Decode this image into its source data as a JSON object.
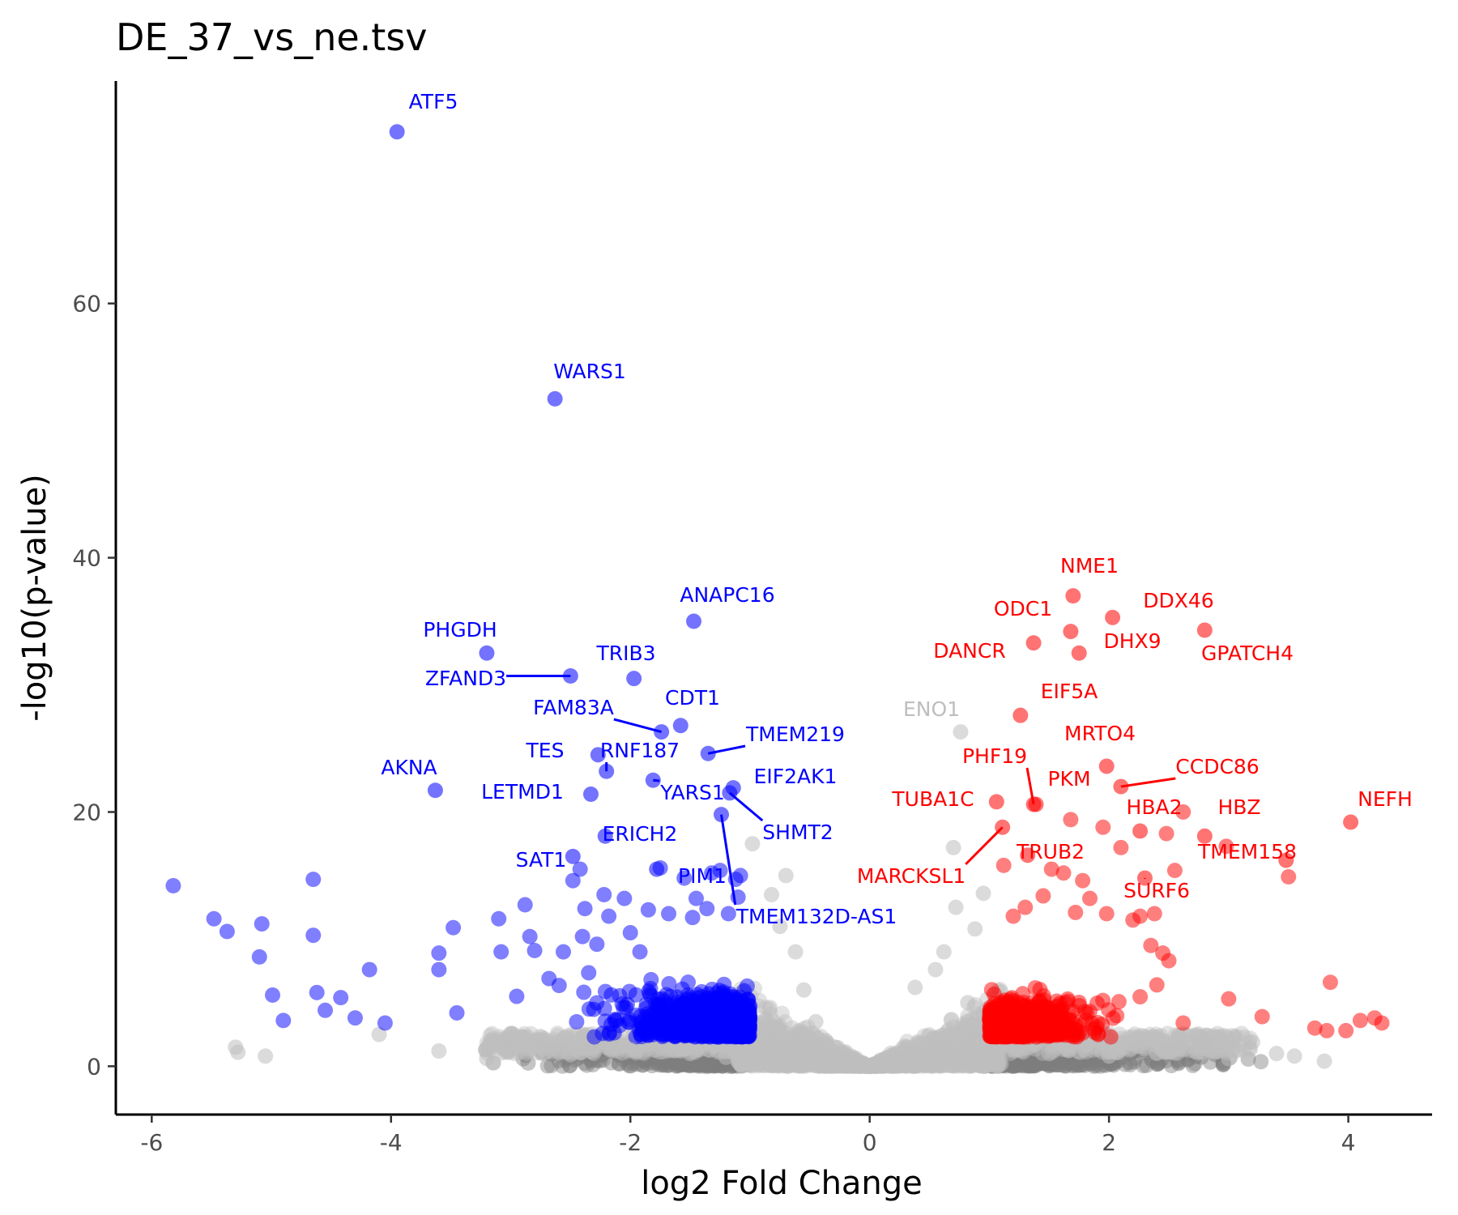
{
  "chart_data": {
    "type": "scatter",
    "title": "DE_37_vs_ne.tsv",
    "xlabel": "log2 Fold Change",
    "ylabel": "-log10(p-value)",
    "xlim": [
      -6.3,
      4.7
    ],
    "ylim": [
      -3.8,
      77.5
    ],
    "x_ticks": [
      -6,
      -4,
      -2,
      0,
      2,
      4
    ],
    "x_tick_labels": [
      "-6",
      "-4",
      "-2",
      "0",
      "2",
      "4"
    ],
    "y_ticks": [
      0,
      20,
      40,
      60
    ],
    "y_tick_labels": [
      "0",
      "20",
      "40",
      "60"
    ],
    "grid": false,
    "legend": "none",
    "colors": {
      "down": "#0000ff",
      "up": "#ff0000",
      "not_significant": "#bebebe",
      "low_significance": "#7f7f7f",
      "axis": "#000000"
    },
    "labeled_genes": [
      {
        "gene": "ATF5",
        "x": -3.95,
        "y": 73.5,
        "group": "down"
      },
      {
        "gene": "WARS1",
        "x": -2.63,
        "y": 52.5,
        "group": "down"
      },
      {
        "gene": "ANAPC16",
        "x": -1.47,
        "y": 35.0,
        "group": "down"
      },
      {
        "gene": "PHGDH",
        "x": -3.2,
        "y": 32.5,
        "group": "down"
      },
      {
        "gene": "TRIB3",
        "x": -1.97,
        "y": 30.5,
        "group": "down"
      },
      {
        "gene": "ZFAND3",
        "x": -2.5,
        "y": 30.7,
        "group": "down"
      },
      {
        "gene": "CDT1",
        "x": -1.58,
        "y": 26.8,
        "group": "down"
      },
      {
        "gene": "FAM83A",
        "x": -1.74,
        "y": 26.3,
        "group": "down"
      },
      {
        "gene": "TMEM219",
        "x": -1.35,
        "y": 24.6,
        "group": "down"
      },
      {
        "gene": "TES",
        "x": -2.27,
        "y": 24.5,
        "group": "down"
      },
      {
        "gene": "RNF187",
        "x": -2.2,
        "y": 23.2,
        "group": "down"
      },
      {
        "gene": "AKNA",
        "x": -3.63,
        "y": 21.7,
        "group": "down"
      },
      {
        "gene": "LETMD1",
        "x": -2.33,
        "y": 21.4,
        "group": "down"
      },
      {
        "gene": "EIF2AK1",
        "x": -1.14,
        "y": 21.9,
        "group": "down"
      },
      {
        "gene": "YARS1",
        "x": -1.81,
        "y": 22.5,
        "group": "down"
      },
      {
        "gene": "SHMT2",
        "x": -1.17,
        "y": 21.5,
        "group": "down"
      },
      {
        "gene": "ERICH2",
        "x": -2.21,
        "y": 18.1,
        "group": "down"
      },
      {
        "gene": "SAT1",
        "x": -2.48,
        "y": 16.5,
        "group": "down"
      },
      {
        "gene": "PIM1",
        "x": -1.78,
        "y": 15.5,
        "group": "down"
      },
      {
        "gene": "TMEM132D-AS1",
        "x": -1.24,
        "y": 19.8,
        "group": "down"
      },
      {
        "gene": "NME1",
        "x": 1.7,
        "y": 37.0,
        "group": "up"
      },
      {
        "gene": "DDX46",
        "x": 2.03,
        "y": 35.3,
        "group": "up"
      },
      {
        "gene": "ODC1",
        "x": 1.68,
        "y": 34.2,
        "group": "up"
      },
      {
        "gene": "GPATCH4",
        "x": 2.8,
        "y": 34.3,
        "group": "up"
      },
      {
        "gene": "DANCR",
        "x": 1.37,
        "y": 33.3,
        "group": "up"
      },
      {
        "gene": "DHX9",
        "x": 1.75,
        "y": 32.5,
        "group": "up"
      },
      {
        "gene": "EIF5A",
        "x": 1.26,
        "y": 27.6,
        "group": "up"
      },
      {
        "gene": "ENO1",
        "x": 0.76,
        "y": 26.3,
        "group": "not_significant"
      },
      {
        "gene": "MRTO4",
        "x": 1.98,
        "y": 23.6,
        "group": "up"
      },
      {
        "gene": "CCDC86",
        "x": 2.1,
        "y": 22.0,
        "group": "up"
      },
      {
        "gene": "PHF19",
        "x": 1.37,
        "y": 20.6,
        "group": "up"
      },
      {
        "gene": "PKM",
        "x": 1.39,
        "y": 20.6,
        "group": "up"
      },
      {
        "gene": "TUBA1C",
        "x": 1.06,
        "y": 20.8,
        "group": "up"
      },
      {
        "gene": "HBA2",
        "x": 2.26,
        "y": 18.5,
        "group": "up"
      },
      {
        "gene": "HBZ",
        "x": 2.8,
        "y": 18.1,
        "group": "up"
      },
      {
        "gene": "NEFH",
        "x": 4.02,
        "y": 19.2,
        "group": "up"
      },
      {
        "gene": "TMEM158",
        "x": 3.48,
        "y": 16.2,
        "group": "up"
      },
      {
        "gene": "TRUB2",
        "x": 1.32,
        "y": 16.6,
        "group": "up"
      },
      {
        "gene": "MARCKSL1",
        "x": 1.11,
        "y": 18.8,
        "group": "up"
      },
      {
        "gene": "SURF6",
        "x": 2.3,
        "y": 14.8,
        "group": "up"
      }
    ],
    "other_points": {
      "down": [
        [
          -5.82,
          14.2
        ],
        [
          -5.48,
          11.6
        ],
        [
          -5.37,
          10.6
        ],
        [
          -5.08,
          11.2
        ],
        [
          -5.1,
          8.6
        ],
        [
          -4.99,
          5.6
        ],
        [
          -4.9,
          3.6
        ],
        [
          -4.65,
          14.7
        ],
        [
          -4.65,
          10.3
        ],
        [
          -4.62,
          5.8
        ],
        [
          -4.55,
          4.4
        ],
        [
          -4.42,
          5.4
        ],
        [
          -4.3,
          3.8
        ],
        [
          -4.18,
          7.6
        ],
        [
          -4.05,
          3.4
        ],
        [
          -3.6,
          8.9
        ],
        [
          -3.6,
          7.6
        ],
        [
          -3.48,
          10.9
        ],
        [
          -3.45,
          4.2
        ],
        [
          -3.1,
          11.6
        ],
        [
          -3.08,
          9.0
        ],
        [
          -2.95,
          5.5
        ],
        [
          -2.88,
          12.7
        ],
        [
          -2.84,
          10.2
        ],
        [
          -2.8,
          9.1
        ],
        [
          -2.68,
          6.9
        ],
        [
          -2.56,
          9.0
        ],
        [
          -2.48,
          14.6
        ],
        [
          -2.42,
          15.5
        ],
        [
          -2.4,
          10.2
        ],
        [
          -2.38,
          12.4
        ],
        [
          -2.28,
          9.6
        ],
        [
          -2.22,
          13.5
        ],
        [
          -2.18,
          11.8
        ],
        [
          -2.05,
          13.2
        ],
        [
          -2.0,
          10.5
        ],
        [
          -1.92,
          9.0
        ],
        [
          -1.85,
          12.3
        ],
        [
          -1.75,
          15.6
        ],
        [
          -1.68,
          12.0
        ],
        [
          -1.55,
          14.8
        ],
        [
          -1.48,
          11.7
        ],
        [
          -1.45,
          13.2
        ],
        [
          -1.36,
          12.4
        ],
        [
          -1.32,
          15.2
        ],
        [
          -1.25,
          15.4
        ],
        [
          -1.18,
          12.0
        ],
        [
          -1.12,
          14.7
        ],
        [
          -1.1,
          13.3
        ],
        [
          -1.08,
          15.0
        ]
      ],
      "up": [
        [
          1.12,
          15.8
        ],
        [
          1.2,
          11.8
        ],
        [
          1.3,
          12.5
        ],
        [
          1.45,
          13.4
        ],
        [
          1.52,
          15.5
        ],
        [
          1.62,
          15.2
        ],
        [
          1.68,
          19.4
        ],
        [
          1.72,
          12.1
        ],
        [
          1.78,
          14.6
        ],
        [
          1.84,
          13.2
        ],
        [
          1.95,
          18.8
        ],
        [
          1.98,
          12.0
        ],
        [
          2.1,
          17.2
        ],
        [
          2.2,
          11.5
        ],
        [
          2.26,
          11.8
        ],
        [
          2.38,
          12.0
        ],
        [
          2.35,
          9.5
        ],
        [
          2.48,
          18.3
        ],
        [
          2.55,
          15.4
        ],
        [
          2.62,
          20.0
        ],
        [
          2.45,
          8.9
        ],
        [
          2.5,
          8.3
        ],
        [
          2.98,
          17.3
        ],
        [
          3.0,
          5.3
        ],
        [
          3.28,
          3.9
        ],
        [
          3.5,
          14.9
        ],
        [
          3.72,
          3.0
        ],
        [
          3.85,
          6.6
        ],
        [
          4.1,
          3.6
        ],
        [
          4.22,
          3.8
        ],
        [
          4.28,
          3.4
        ],
        [
          3.98,
          2.8
        ],
        [
          3.82,
          2.8
        ],
        [
          2.62,
          3.4
        ],
        [
          2.4,
          6.4
        ]
      ]
    },
    "cloud_points": [
      [
        -5.3,
        1.5
      ],
      [
        -5.28,
        1.1
      ],
      [
        -5.05,
        0.8
      ],
      [
        -4.1,
        2.5
      ],
      [
        -3.6,
        1.2
      ],
      [
        -3.2,
        0.6
      ],
      [
        -2.5,
        0.9
      ],
      [
        -2.0,
        1.3
      ],
      [
        -1.5,
        1.0
      ],
      [
        -1.2,
        0.7
      ],
      [
        -0.98,
        17.5
      ],
      [
        -0.82,
        13.5
      ],
      [
        -0.7,
        15.0
      ],
      [
        -0.62,
        9.0
      ],
      [
        -0.75,
        11.0
      ],
      [
        -0.55,
        6.0
      ],
      [
        -0.45,
        3.5
      ],
      [
        0.38,
        6.2
      ],
      [
        0.55,
        7.6
      ],
      [
        0.72,
        12.5
      ],
      [
        0.7,
        17.2
      ],
      [
        0.88,
        10.8
      ],
      [
        0.95,
        13.6
      ],
      [
        0.62,
        9.0
      ],
      [
        0.82,
        5.0
      ],
      [
        1.5,
        1.0
      ],
      [
        2.0,
        0.8
      ],
      [
        2.5,
        1.2
      ],
      [
        3.0,
        0.6
      ],
      [
        3.4,
        1.0
      ],
      [
        3.55,
        0.8
      ],
      [
        3.8,
        0.4
      ],
      [
        3.2,
        1.9
      ],
      [
        2.8,
        2.0
      ]
    ]
  }
}
